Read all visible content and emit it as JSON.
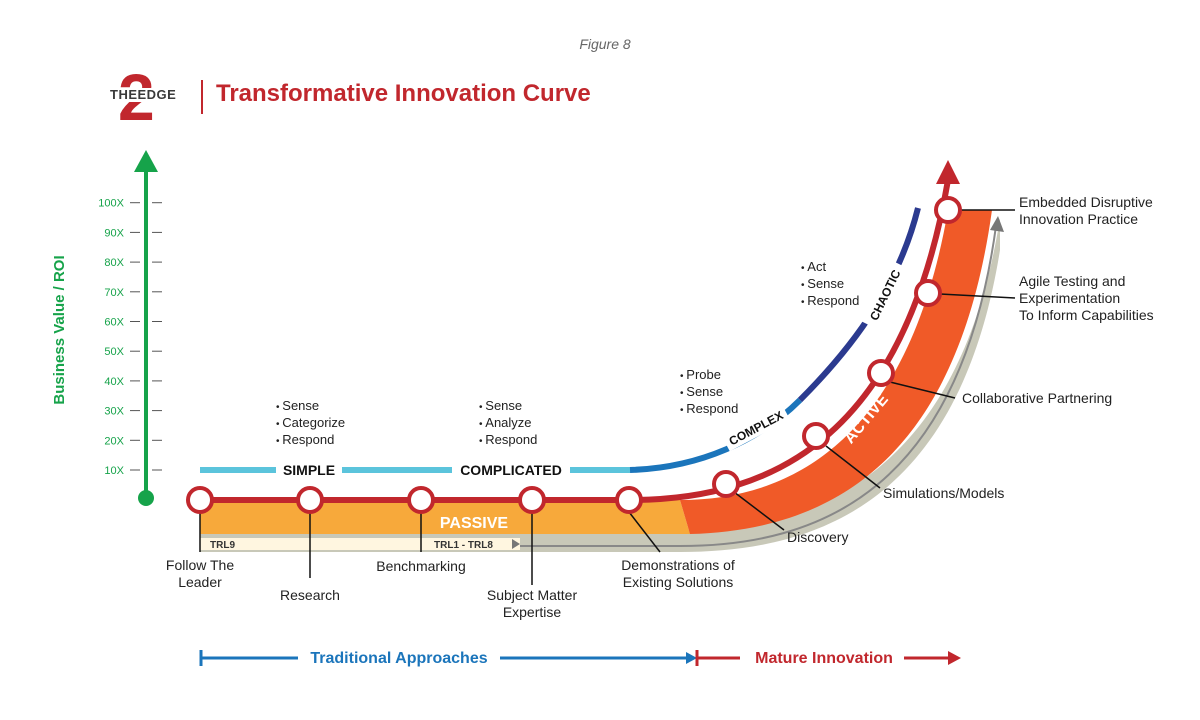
{
  "figure_label": "Figure 8",
  "logo": {
    "word": "THEEDGE",
    "numeral": "2"
  },
  "title": "Transformative Innovation Curve",
  "y_axis": {
    "label": "Business Value / ROI",
    "ticks": [
      "10X",
      "20X",
      "30X",
      "40X",
      "50X",
      "60X",
      "70X",
      "80X",
      "90X",
      "100X"
    ]
  },
  "domains": [
    {
      "label": "SIMPLE",
      "bullets": [
        "Sense",
        "Categorize",
        "Respond"
      ]
    },
    {
      "label": "COMPLICATED",
      "bullets": [
        "Sense",
        "Analyze",
        "Respond"
      ]
    },
    {
      "label": "COMPLEX",
      "bullets": [
        "Probe",
        "Sense",
        "Respond"
      ]
    },
    {
      "label": "CHAOTIC",
      "bullets": [
        "Act",
        "Sense",
        "Respond"
      ]
    }
  ],
  "band_labels": {
    "passive": "PASSIVE",
    "active": "ACTIVE"
  },
  "trl": {
    "left": "TRL9",
    "right": "TRL1 - TRL8"
  },
  "stages": [
    "Follow The Leader",
    "Research",
    "Benchmarking",
    "Subject Matter Expertise",
    "Demonstrations of Existing Solutions",
    "Discovery",
    "Simulations/Models",
    "Collaborative Partnering",
    "Agile Testing and Experimentation To Inform Capabilities",
    "Embedded Disruptive Innovation Practice"
  ],
  "bottom": {
    "traditional": "Traditional Approaches",
    "mature": "Mature Innovation"
  },
  "colors": {
    "brand_red": "#c1272d",
    "axis_green": "#16a34a",
    "passive_orange": "#f7a93b",
    "active_orange": "#f05a28",
    "light_blue": "#5bc4dc",
    "mid_blue": "#1b75bb",
    "navy": "#2b3a8f",
    "shadow_gray": "#c8c8b8"
  }
}
